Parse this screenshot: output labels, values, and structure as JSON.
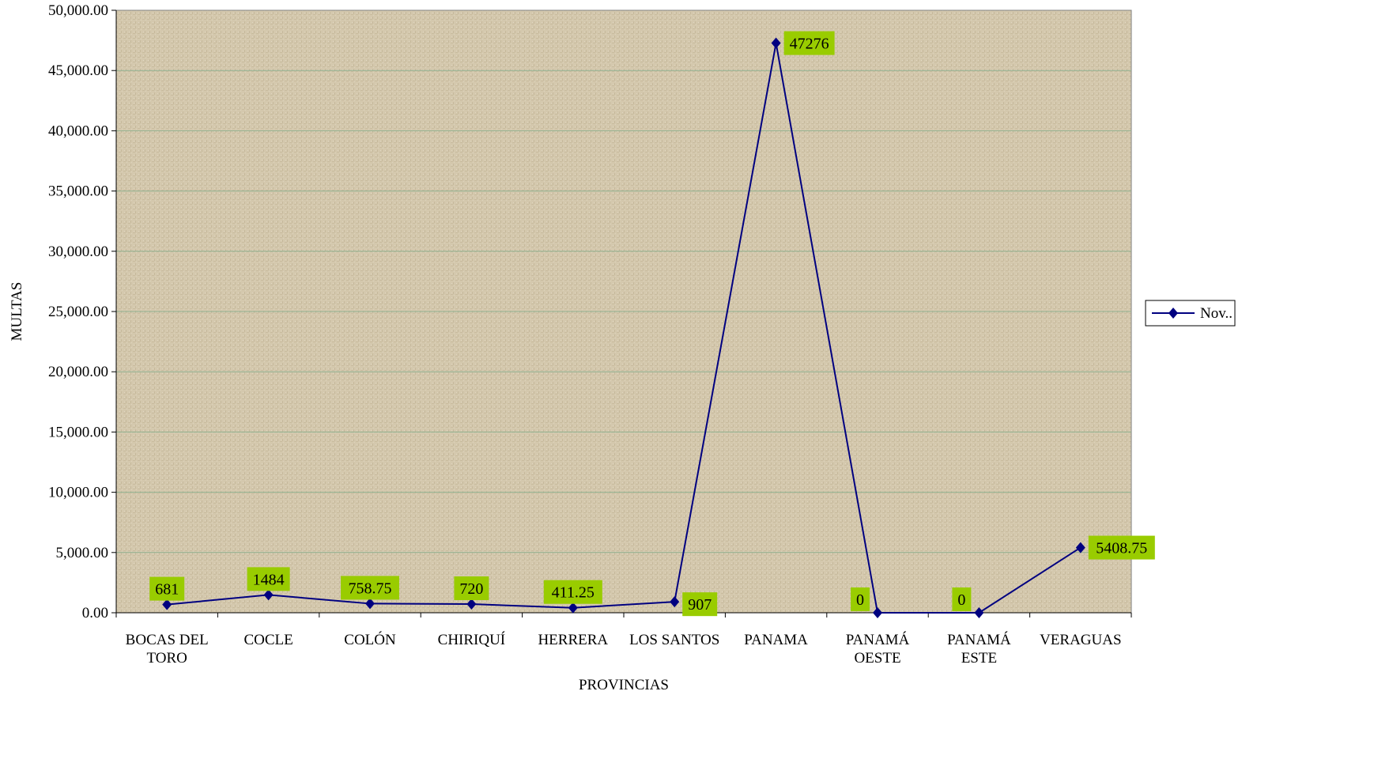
{
  "chart_data": {
    "type": "line",
    "categories": [
      [
        "BOCAS DEL",
        "TORO"
      ],
      [
        "COCLE"
      ],
      [
        "COLÓN"
      ],
      [
        "CHIRIQUÍ"
      ],
      [
        "HERRERA"
      ],
      [
        "LOS SANTOS"
      ],
      [
        "PANAMA"
      ],
      [
        "PANAMÁ",
        "OESTE"
      ],
      [
        "PANAMÁ",
        "ESTE"
      ],
      [
        "VERAGUAS"
      ]
    ],
    "series": [
      {
        "name": "Nov..",
        "values": [
          681,
          1484,
          758.75,
          720,
          411.25,
          907,
          47276,
          0,
          0,
          5408.75
        ],
        "color": "#000080"
      }
    ],
    "data_labels": [
      "681",
      "1484",
      "758.75",
      "720",
      "411.25",
      "907",
      "47276",
      "0",
      "0",
      "5408.75"
    ],
    "yticks": [
      "0.00",
      "5,000.00",
      "10,000.00",
      "15,000.00",
      "20,000.00",
      "25,000.00",
      "30,000.00",
      "35,000.00",
      "40,000.00",
      "45,000.00",
      "50,000.00"
    ],
    "ylim": [
      0,
      50000
    ],
    "xlabel": "PROVINCIAS",
    "ylabel": "MULTAS",
    "grid": true,
    "legend_position": "right",
    "colors": {
      "plot_background": "#d4c8ad",
      "gridline": "#8fb08f",
      "line": "#000080",
      "label_background": "#99cc00"
    }
  }
}
